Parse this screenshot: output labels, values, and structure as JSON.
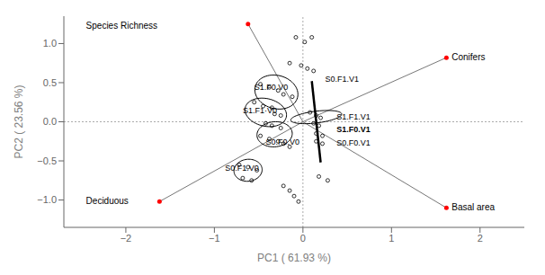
{
  "chart_data": {
    "type": "scatter",
    "xlabel": "PC1 ( 61.93 %)",
    "ylabel": "PC2 ( 23.56 %)",
    "xlim": [
      -2.7,
      2.5
    ],
    "ylim": [
      -1.35,
      1.35
    ],
    "xticks": [
      {
        "value": -2,
        "label": "−2"
      },
      {
        "value": -1,
        "label": "−1"
      },
      0,
      1,
      2
    ],
    "yticks": [
      {
        "value": -1.0,
        "label": "−1.0"
      },
      {
        "value": -0.5,
        "label": "−0.5"
      },
      {
        "value": 0.0,
        "label": "0.0"
      },
      {
        "value": 0.5,
        "label": "0.5"
      },
      {
        "value": 1.0,
        "label": "1.0"
      }
    ],
    "grid": false,
    "origin": [
      0,
      0
    ],
    "points": [
      [
        -0.08,
        1.08
      ],
      [
        0.02,
        1.02
      ],
      [
        0.1,
        1.08
      ],
      [
        -0.15,
        0.75
      ],
      [
        -0.02,
        0.72
      ],
      [
        0.05,
        0.68
      ],
      [
        0.12,
        0.65
      ],
      [
        -0.48,
        0.48
      ],
      [
        -0.38,
        0.44
      ],
      [
        -0.28,
        0.4
      ],
      [
        -0.22,
        0.35
      ],
      [
        -0.12,
        0.32
      ],
      [
        -0.55,
        0.25
      ],
      [
        -0.45,
        0.2
      ],
      [
        -0.35,
        0.18
      ],
      [
        -0.32,
        0.1
      ],
      [
        -0.25,
        0.08
      ],
      [
        -0.42,
        -0.02
      ],
      [
        -0.35,
        -0.05
      ],
      [
        -0.25,
        -0.08
      ],
      [
        -0.48,
        -0.18
      ],
      [
        -0.38,
        -0.22
      ],
      [
        -0.28,
        -0.25
      ],
      [
        -0.22,
        -0.28
      ],
      [
        -0.15,
        -0.32
      ],
      [
        -0.72,
        -0.55
      ],
      [
        -0.62,
        -0.58
      ],
      [
        -0.52,
        -0.62
      ],
      [
        -0.68,
        -0.72
      ],
      [
        -0.58,
        -0.75
      ],
      [
        -0.22,
        -0.82
      ],
      [
        -0.15,
        -0.88
      ],
      [
        -0.1,
        -0.95
      ],
      [
        -0.05,
        -1.02
      ],
      [
        0.18,
        -0.7
      ],
      [
        0.28,
        -0.75
      ],
      [
        0.08,
        0.12
      ],
      [
        0.15,
        0.08
      ],
      [
        0.2,
        0.05
      ],
      [
        0.12,
        -0.02
      ],
      [
        0.18,
        -0.05
      ],
      [
        0.15,
        -0.15
      ],
      [
        0.22,
        -0.18
      ],
      [
        0.15,
        -0.25
      ],
      [
        0.22,
        -0.28
      ]
    ],
    "arrows": {
      "color": "red",
      "items": [
        {
          "x": -0.62,
          "y": 1.25,
          "label": "Species Richness",
          "label_x": -2.45,
          "label_y": 1.22
        },
        {
          "x": 1.62,
          "y": 0.82,
          "label": "Conifers",
          "label_x": 1.68,
          "label_y": 0.82
        },
        {
          "x": -1.62,
          "y": -1.02,
          "label": "Deciduous",
          "label_x": -2.45,
          "label_y": -1.02
        },
        {
          "x": 1.62,
          "y": -1.1,
          "label": "Basal area",
          "label_x": 1.68,
          "label_y": -1.1
        }
      ]
    },
    "ellipses": [
      {
        "cx": -0.3,
        "cy": 0.38,
        "width": 0.5,
        "height": 0.42,
        "angle": -25
      },
      {
        "cx": -0.42,
        "cy": 0.12,
        "width": 0.48,
        "height": 0.35,
        "angle": -18
      },
      {
        "cx": -0.32,
        "cy": -0.16,
        "width": 0.4,
        "height": 0.32,
        "angle": 8
      },
      {
        "cx": -0.62,
        "cy": -0.62,
        "width": 0.32,
        "height": 0.28,
        "angle": 12
      },
      {
        "cx": 0.15,
        "cy": 0.06,
        "width": 0.15,
        "height": 0.58,
        "angle": -82
      }
    ],
    "line": [
      [
        0.1,
        0.52
      ],
      [
        0.2,
        -0.52
      ]
    ],
    "annotations": [
      {
        "text": "S1.F0.V0",
        "x": -0.55,
        "y": 0.44,
        "bold": false
      },
      {
        "text": "S1.F1·V0",
        "x": -0.68,
        "y": 0.14,
        "bold": false
      },
      {
        "text": "S0.F0.V0",
        "x": -0.42,
        "y": -0.26,
        "bold": false
      },
      {
        "text": "S0.F1.V0",
        "x": -0.88,
        "y": -0.6,
        "bold": false
      },
      {
        "text": "S0.F1.V1",
        "x": 0.25,
        "y": 0.54,
        "bold": false
      },
      {
        "text": "S1.F1.V1",
        "x": 0.38,
        "y": 0.06,
        "bold": false
      },
      {
        "text": "S1.F0.V1",
        "x": 0.38,
        "y": -0.1,
        "bold": true
      },
      {
        "text": "S0.F0.V1",
        "x": 0.38,
        "y": -0.28,
        "bold": false
      }
    ]
  }
}
